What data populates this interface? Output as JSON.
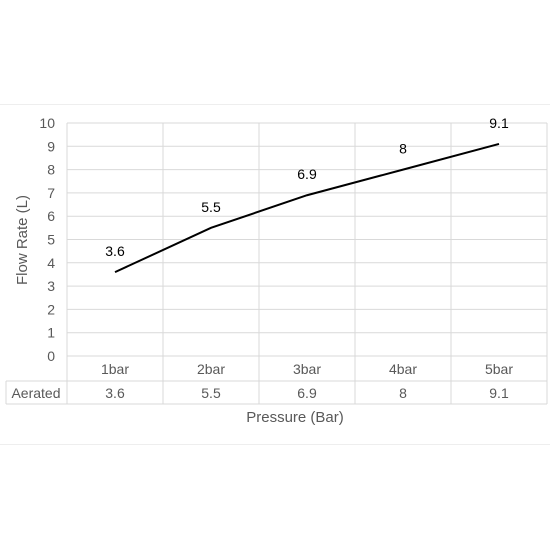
{
  "chart_data": {
    "type": "line",
    "categories": [
      "1bar",
      "2bar",
      "3bar",
      "4bar",
      "5bar"
    ],
    "series": [
      {
        "name": "Aerated",
        "values": [
          3.6,
          5.5,
          6.9,
          8,
          9.1
        ],
        "color": "#000000"
      }
    ],
    "data_labels": [
      "3.6",
      "5.5",
      "6.9",
      "8",
      "9.1"
    ],
    "title": "",
    "xlabel": "Pressure (Bar)",
    "ylabel": "Flow Rate (L)",
    "ylim": [
      0,
      10
    ],
    "yticks": [
      "0",
      "1",
      "2",
      "3",
      "4",
      "5",
      "6",
      "7",
      "8",
      "9",
      "10"
    ],
    "grid": true,
    "data_table": {
      "row_label": "Aerated",
      "values": [
        "3.6",
        "5.5",
        "6.9",
        "8",
        "9.1"
      ]
    }
  }
}
